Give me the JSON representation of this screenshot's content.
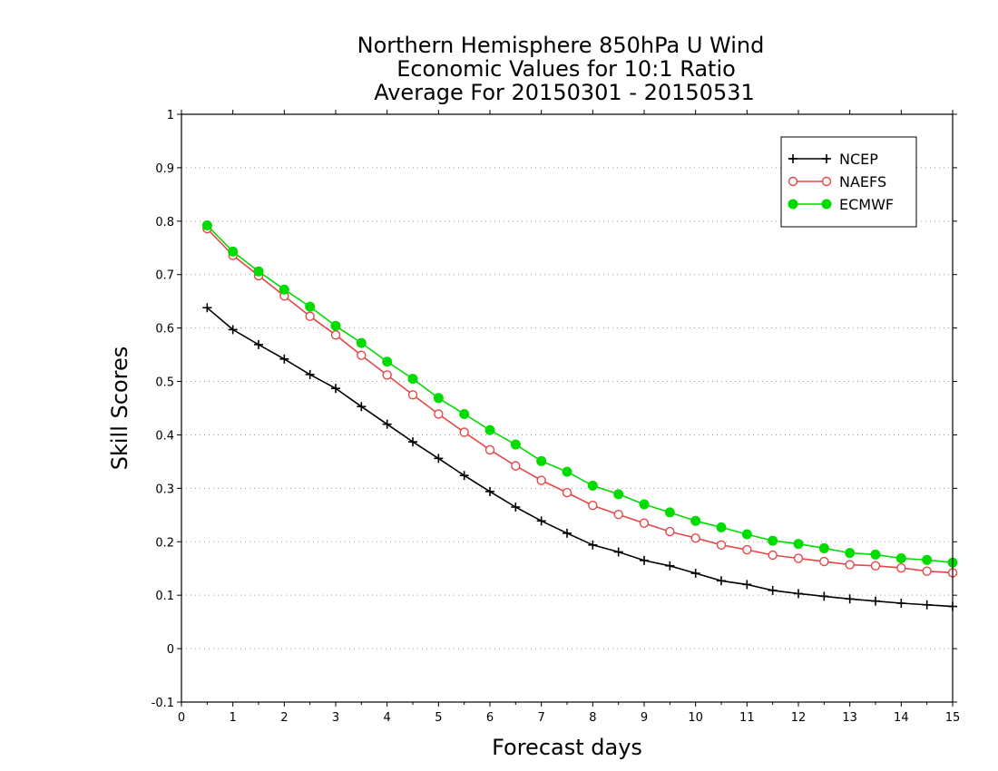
{
  "chart_data": {
    "type": "line",
    "title_lines": [
      "Northern Hemisphere 850hPa U Wind",
      "Economic Values for 10:1 Ratio",
      "Average For 20150301 - 20150531"
    ],
    "xlabel": "Forecast days",
    "ylabel": "Skill Scores",
    "xlim": [
      0,
      15
    ],
    "ylim": [
      -0.1,
      1
    ],
    "xticks": [
      0,
      1,
      2,
      3,
      4,
      5,
      6,
      7,
      8,
      9,
      10,
      11,
      12,
      13,
      14,
      15
    ],
    "yticks": [
      -0.1,
      0,
      0.1,
      0.2,
      0.3,
      0.4,
      0.5,
      0.6,
      0.7,
      0.8,
      0.9,
      1
    ],
    "ytick_labels": [
      "-0.1",
      "0",
      "0.1",
      "0.2",
      "0.3",
      "0.4",
      "0.5",
      "0.6",
      "0.7",
      "0.8",
      "0.9",
      "1"
    ],
    "grid": "horizontal dotted",
    "legend_position": "top-right",
    "x": [
      0.5,
      1,
      1.5,
      2,
      2.5,
      3,
      3.5,
      4,
      4.5,
      5,
      5.5,
      6,
      6.5,
      7,
      7.5,
      8,
      8.5,
      9,
      9.5,
      10,
      10.5,
      11,
      11.5,
      12,
      12.5,
      13,
      13.5,
      14,
      14.5,
      15
    ],
    "series": [
      {
        "name": "NCEP",
        "color": "#000000",
        "marker": "plus",
        "values": [
          0.638,
          0.597,
          0.569,
          0.542,
          0.513,
          0.487,
          0.453,
          0.42,
          0.387,
          0.356,
          0.324,
          0.294,
          0.265,
          0.239,
          0.216,
          0.194,
          0.181,
          0.165,
          0.155,
          0.141,
          0.127,
          0.12,
          0.109,
          0.103,
          0.098,
          0.093,
          0.089,
          0.085,
          0.082,
          0.079
        ]
      },
      {
        "name": "NAEFS",
        "color": "#e64646",
        "marker": "open-circle",
        "values": [
          0.786,
          0.736,
          0.698,
          0.66,
          0.622,
          0.587,
          0.549,
          0.512,
          0.475,
          0.439,
          0.405,
          0.372,
          0.342,
          0.315,
          0.292,
          0.268,
          0.251,
          0.235,
          0.219,
          0.207,
          0.194,
          0.185,
          0.175,
          0.169,
          0.163,
          0.157,
          0.155,
          0.151,
          0.145,
          0.142
        ]
      },
      {
        "name": "ECMWF",
        "color": "#00dc00",
        "marker": "filled-circle",
        "values": [
          0.792,
          0.743,
          0.706,
          0.672,
          0.64,
          0.604,
          0.572,
          0.537,
          0.505,
          0.469,
          0.439,
          0.409,
          0.382,
          0.351,
          0.331,
          0.305,
          0.289,
          0.27,
          0.255,
          0.239,
          0.227,
          0.214,
          0.202,
          0.196,
          0.188,
          0.179,
          0.176,
          0.169,
          0.166,
          0.161
        ]
      }
    ]
  }
}
